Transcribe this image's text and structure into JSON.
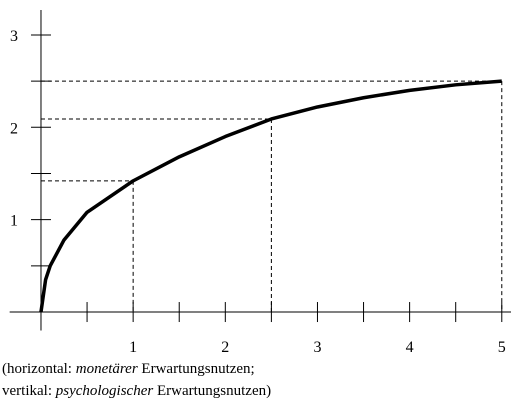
{
  "chart_data": {
    "type": "line",
    "x": [
      0,
      0.05,
      0.1,
      0.25,
      0.5,
      1,
      1.5,
      2,
      2.5,
      3,
      3.5,
      4,
      4.5,
      5
    ],
    "values": [
      0,
      0.35,
      0.5,
      0.78,
      1.08,
      1.42,
      1.68,
      1.9,
      2.09,
      2.22,
      2.32,
      2.4,
      2.46,
      2.5
    ],
    "color": "#000000",
    "xlim": [
      -0.34,
      5.1
    ],
    "ylim": [
      -0.2,
      3.27
    ],
    "xticks": [
      1,
      2,
      3,
      4,
      5
    ],
    "yticks": [
      1,
      2,
      3
    ],
    "xminorticks": [
      0.5,
      1.5,
      2.5,
      3.5,
      4.5
    ],
    "yminorticks": [
      0.5,
      1.5,
      2.5
    ],
    "guides": [
      {
        "x": 1,
        "y": 1.42
      },
      {
        "x": 2.5,
        "y": 2.09
      },
      {
        "x": 5,
        "y": 2.5
      }
    ],
    "caption": [
      [
        "(horizontal: ",
        "monetärer",
        " Erwartungsnutzen;"
      ],
      [
        "vertikal: ",
        "psychologischer",
        " Erwartungsnutzen)"
      ]
    ]
  }
}
